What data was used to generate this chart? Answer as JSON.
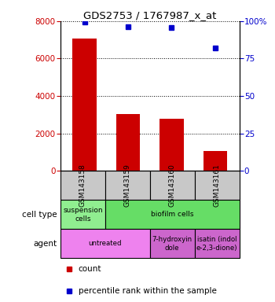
{
  "title": "GDS2753 / 1767987_x_at",
  "samples": [
    "GSM143158",
    "GSM143159",
    "GSM143160",
    "GSM143161"
  ],
  "counts": [
    7050,
    3050,
    2800,
    1050
  ],
  "percentiles": [
    99.5,
    96,
    95.5,
    82
  ],
  "ylim_left": [
    0,
    8000
  ],
  "ylim_right": [
    0,
    100
  ],
  "yticks_left": [
    0,
    2000,
    4000,
    6000,
    8000
  ],
  "yticks_right": [
    0,
    25,
    50,
    75,
    100
  ],
  "bar_color": "#cc0000",
  "dot_color": "#0000cc",
  "cell_type_spans": [
    1,
    3
  ],
  "cell_type_labels": [
    "suspension\ncells",
    "biofilm cells"
  ],
  "cell_type_colors": [
    "#90ee90",
    "#66dd66"
  ],
  "agent_spans": [
    2,
    1,
    1
  ],
  "agent_labels": [
    "untreated",
    "7-hydroxyin\ndole",
    "isatin (indol\ne-2,3-dione)"
  ],
  "agent_colors": [
    "#ee82ee",
    "#cc66cc",
    "#cc66cc"
  ],
  "cell_type_label": "cell type",
  "agent_label": "agent",
  "legend_count": "count",
  "legend_percentile": "percentile rank within the sample",
  "tick_label_color_left": "#cc0000",
  "tick_label_color_right": "#0000cc",
  "gray_box_color": "#c8c8c8"
}
